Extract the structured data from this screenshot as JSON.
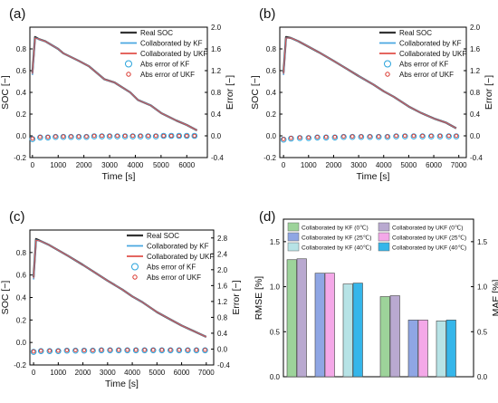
{
  "chart_data": [
    {
      "panel_label": "(a)",
      "type": "line",
      "xlabel": "Time [s]",
      "ylabel": "SOC [−]",
      "y2label": "Error [−]",
      "xlim": [
        -100,
        6800
      ],
      "ylim": [
        -0.2,
        1.0
      ],
      "y2lim": [
        -0.4,
        2.0
      ],
      "xticks": [
        0,
        1000,
        2000,
        3000,
        4000,
        5000,
        6000
      ],
      "yticks": [
        -0.2,
        0.0,
        0.2,
        0.4,
        0.6,
        0.8
      ],
      "y2ticks": [
        -0.4,
        0.0,
        0.4,
        0.8,
        1.2,
        1.6,
        2.0
      ],
      "legend_position": "top-right",
      "legend": [
        {
          "label": "Real SOC",
          "kind": "line",
          "color": "#333333"
        },
        {
          "label": "Collaborated by KF",
          "kind": "line",
          "color": "#4aa7e0"
        },
        {
          "label": "Collaborated by UKF",
          "kind": "line",
          "color": "#e0504a"
        },
        {
          "label": "Abs error of KF",
          "kind": "circle",
          "color": "#2aa3dc"
        },
        {
          "label": "Abs error of UKF",
          "kind": "circle",
          "color": "#d9342b"
        }
      ],
      "series": [
        {
          "name": "Real SOC",
          "axis": "left",
          "x": [
            0,
            100,
            250,
            500,
            1000,
            1200,
            1800,
            2200,
            2800,
            3200,
            3800,
            4100,
            4600,
            5000,
            5600,
            6000,
            6400
          ],
          "y": [
            0.58,
            0.91,
            0.89,
            0.87,
            0.8,
            0.76,
            0.69,
            0.64,
            0.52,
            0.49,
            0.4,
            0.33,
            0.28,
            0.21,
            0.14,
            0.1,
            0.05
          ]
        },
        {
          "name": "Collaborated by KF",
          "axis": "left",
          "x": [
            0,
            100,
            250,
            500,
            1000,
            1200,
            1800,
            2200,
            2800,
            3200,
            3800,
            4100,
            4600,
            5000,
            5600,
            6000,
            6400
          ],
          "y": [
            0.56,
            0.9,
            0.89,
            0.87,
            0.8,
            0.76,
            0.69,
            0.64,
            0.52,
            0.49,
            0.4,
            0.33,
            0.28,
            0.21,
            0.14,
            0.1,
            0.05
          ]
        },
        {
          "name": "Collaborated by UKF",
          "axis": "left",
          "x": [
            0,
            100,
            250,
            500,
            1000,
            1200,
            1800,
            2200,
            2800,
            3200,
            3800,
            4100,
            4600,
            5000,
            5600,
            6000,
            6400
          ],
          "y": [
            0.57,
            0.9,
            0.89,
            0.87,
            0.8,
            0.76,
            0.69,
            0.64,
            0.52,
            0.49,
            0.4,
            0.33,
            0.28,
            0.21,
            0.14,
            0.1,
            0.05
          ]
        },
        {
          "name": "Abs error of KF",
          "axis": "right",
          "x": [
            0,
            300,
            600,
            900,
            1200,
            1500,
            1800,
            2100,
            2400,
            2700,
            3000,
            3300,
            3600,
            3900,
            4200,
            4500,
            4800,
            5100,
            5400,
            5700,
            6000,
            6300
          ],
          "y": [
            -0.06,
            -0.03,
            -0.03,
            -0.02,
            -0.02,
            -0.02,
            -0.02,
            -0.02,
            -0.01,
            -0.01,
            -0.01,
            -0.01,
            -0.01,
            -0.01,
            -0.01,
            -0.01,
            -0.01,
            0.0,
            0.0,
            0.0,
            0.0,
            0.0
          ]
        },
        {
          "name": "Abs error of UKF",
          "axis": "right",
          "x": [
            0,
            300,
            600,
            900,
            1200,
            1500,
            1800,
            2100,
            2400,
            2700,
            3000,
            3300,
            3600,
            3900,
            4200,
            4500,
            4800,
            5100,
            5400,
            5700,
            6000,
            6300
          ],
          "y": [
            -0.05,
            -0.02,
            -0.02,
            -0.01,
            -0.01,
            -0.01,
            -0.01,
            -0.01,
            0.0,
            0.0,
            0.0,
            0.0,
            0.0,
            0.0,
            0.0,
            0.0,
            0.0,
            0.0,
            0.0,
            0.0,
            0.0,
            0.0
          ]
        }
      ]
    },
    {
      "panel_label": "(b)",
      "type": "line",
      "xlabel": "Time [s]",
      "ylabel": "SOC [−]",
      "y2label": "Error [−]",
      "xlim": [
        -150,
        7300
      ],
      "ylim": [
        -0.2,
        1.0
      ],
      "y2lim": [
        -0.4,
        2.0
      ],
      "xticks": [
        0,
        1000,
        2000,
        3000,
        4000,
        5000,
        6000,
        7000
      ],
      "yticks": [
        -0.2,
        0.0,
        0.2,
        0.4,
        0.6,
        0.8
      ],
      "y2ticks": [
        -0.4,
        0.0,
        0.4,
        0.8,
        1.2,
        1.6,
        2.0
      ],
      "legend_position": "top-right",
      "legend": [
        {
          "label": "Real SOC",
          "kind": "line",
          "color": "#333333"
        },
        {
          "label": "Collaborated by KF",
          "kind": "line",
          "color": "#4aa7e0"
        },
        {
          "label": "Collaborated by UKF",
          "kind": "line",
          "color": "#e0504a"
        },
        {
          "label": "Abs error of KF",
          "kind": "circle",
          "color": "#2aa3dc"
        },
        {
          "label": "Abs error of UKF",
          "kind": "circle",
          "color": "#d9342b"
        }
      ],
      "series": [
        {
          "name": "Real SOC",
          "axis": "left",
          "x": [
            0,
            100,
            300,
            600,
            1000,
            1400,
            2000,
            2500,
            3000,
            3600,
            4000,
            4400,
            5000,
            5500,
            6000,
            6500,
            6900
          ],
          "y": [
            0.58,
            0.91,
            0.9,
            0.87,
            0.82,
            0.77,
            0.69,
            0.62,
            0.55,
            0.47,
            0.41,
            0.36,
            0.27,
            0.21,
            0.16,
            0.12,
            0.07
          ]
        },
        {
          "name": "Collaborated by KF",
          "axis": "left",
          "x": [
            0,
            100,
            300,
            600,
            1000,
            1400,
            2000,
            2500,
            3000,
            3600,
            4000,
            4400,
            5000,
            5500,
            6000,
            6500,
            6900
          ],
          "y": [
            0.56,
            0.9,
            0.9,
            0.87,
            0.82,
            0.77,
            0.69,
            0.62,
            0.55,
            0.47,
            0.41,
            0.36,
            0.27,
            0.21,
            0.16,
            0.12,
            0.07
          ]
        },
        {
          "name": "Collaborated by UKF",
          "axis": "left",
          "x": [
            0,
            100,
            300,
            600,
            1000,
            1400,
            2000,
            2500,
            3000,
            3600,
            4000,
            4400,
            5000,
            5500,
            6000,
            6500,
            6900
          ],
          "y": [
            0.57,
            0.9,
            0.9,
            0.87,
            0.82,
            0.77,
            0.69,
            0.62,
            0.55,
            0.47,
            0.41,
            0.36,
            0.27,
            0.21,
            0.16,
            0.12,
            0.07
          ]
        },
        {
          "name": "Abs error of KF",
          "axis": "right",
          "x": [
            0,
            300,
            650,
            1000,
            1350,
            1700,
            2050,
            2400,
            2750,
            3100,
            3450,
            3800,
            4150,
            4500,
            4850,
            5200,
            5550,
            5900,
            6250,
            6600,
            6900
          ],
          "y": [
            -0.07,
            -0.05,
            -0.04,
            -0.04,
            -0.03,
            -0.03,
            -0.03,
            -0.02,
            -0.02,
            -0.02,
            -0.02,
            -0.02,
            -0.02,
            -0.01,
            -0.01,
            -0.01,
            -0.01,
            -0.01,
            -0.01,
            -0.01,
            -0.01
          ]
        },
        {
          "name": "Abs error of UKF",
          "axis": "right",
          "x": [
            0,
            300,
            650,
            1000,
            1350,
            1700,
            2050,
            2400,
            2750,
            3100,
            3450,
            3800,
            4150,
            4500,
            4850,
            5200,
            5550,
            5900,
            6250,
            6600,
            6900
          ],
          "y": [
            -0.06,
            -0.04,
            -0.03,
            -0.03,
            -0.02,
            -0.02,
            -0.02,
            -0.01,
            -0.01,
            -0.01,
            -0.01,
            -0.01,
            -0.01,
            0.0,
            0.0,
            0.0,
            0.0,
            0.0,
            0.0,
            0.0,
            0.0
          ]
        }
      ]
    },
    {
      "panel_label": "(c)",
      "type": "line",
      "xlabel": "Time [s]",
      "ylabel": "SOC [−]",
      "y2label": "Error [−]",
      "xlim": [
        -150,
        7300
      ],
      "ylim": [
        -0.2,
        1.0
      ],
      "y2lim": [
        -0.4,
        3.0
      ],
      "xticks": [
        0,
        1000,
        2000,
        3000,
        4000,
        5000,
        6000,
        7000
      ],
      "yticks": [
        -0.2,
        0.0,
        0.2,
        0.4,
        0.6,
        0.8
      ],
      "y2ticks": [
        -0.4,
        0.0,
        0.4,
        0.8,
        1.2,
        1.6,
        2.0,
        2.4,
        2.8
      ],
      "legend_position": "top-right",
      "legend": [
        {
          "label": "Real SOC",
          "kind": "line",
          "color": "#333333"
        },
        {
          "label": "Collaborated by KF",
          "kind": "line",
          "color": "#4aa7e0"
        },
        {
          "label": "Collaborated by UKF",
          "kind": "line",
          "color": "#e0504a"
        },
        {
          "label": "Abs error of KF",
          "kind": "circle",
          "color": "#2aa3dc"
        },
        {
          "label": "Abs error of UKF",
          "kind": "circle",
          "color": "#d9342b"
        }
      ],
      "series": [
        {
          "name": "Real SOC",
          "axis": "left",
          "x": [
            0,
            100,
            300,
            600,
            1000,
            1400,
            2000,
            2500,
            3000,
            3600,
            4000,
            4400,
            5000,
            5500,
            6000,
            6500,
            7000
          ],
          "y": [
            0.58,
            0.92,
            0.9,
            0.87,
            0.82,
            0.77,
            0.69,
            0.62,
            0.55,
            0.47,
            0.41,
            0.36,
            0.27,
            0.21,
            0.15,
            0.1,
            0.05
          ]
        },
        {
          "name": "Collaborated by KF",
          "axis": "left",
          "x": [
            0,
            100,
            300,
            600,
            1000,
            1400,
            2000,
            2500,
            3000,
            3600,
            4000,
            4400,
            5000,
            5500,
            6000,
            6500,
            7000
          ],
          "y": [
            0.56,
            0.91,
            0.9,
            0.87,
            0.82,
            0.77,
            0.69,
            0.62,
            0.55,
            0.47,
            0.41,
            0.36,
            0.27,
            0.21,
            0.15,
            0.1,
            0.05
          ]
        },
        {
          "name": "Collaborated by UKF",
          "axis": "left",
          "x": [
            0,
            100,
            300,
            600,
            1000,
            1400,
            2000,
            2500,
            3000,
            3600,
            4000,
            4400,
            5000,
            5500,
            6000,
            6500,
            7000
          ],
          "y": [
            0.57,
            0.91,
            0.9,
            0.87,
            0.82,
            0.77,
            0.69,
            0.62,
            0.55,
            0.47,
            0.41,
            0.36,
            0.27,
            0.21,
            0.15,
            0.1,
            0.05
          ]
        },
        {
          "name": "Abs error of KF",
          "axis": "right",
          "x": [
            0,
            300,
            650,
            1000,
            1350,
            1700,
            2050,
            2400,
            2750,
            3100,
            3450,
            3800,
            4150,
            4500,
            4850,
            5200,
            5550,
            5900,
            6250,
            6600,
            6950
          ],
          "y": [
            -0.07,
            -0.05,
            -0.05,
            -0.05,
            -0.04,
            -0.04,
            -0.04,
            -0.04,
            -0.03,
            -0.03,
            -0.03,
            -0.03,
            -0.03,
            -0.03,
            -0.03,
            -0.03,
            -0.03,
            -0.03,
            -0.03,
            -0.03,
            -0.03
          ]
        },
        {
          "name": "Abs error of UKF",
          "axis": "right",
          "x": [
            0,
            300,
            650,
            1000,
            1350,
            1700,
            2050,
            2400,
            2750,
            3100,
            3450,
            3800,
            4150,
            4500,
            4850,
            5200,
            5550,
            5900,
            6250,
            6600,
            6950
          ],
          "y": [
            -0.06,
            -0.04,
            -0.04,
            -0.04,
            -0.03,
            -0.03,
            -0.03,
            -0.03,
            -0.02,
            -0.02,
            -0.02,
            -0.02,
            -0.02,
            -0.02,
            -0.02,
            -0.02,
            -0.02,
            -0.02,
            -0.02,
            -0.02,
            -0.02
          ]
        }
      ]
    },
    {
      "panel_label": "(d)",
      "type": "bar",
      "ylabel": "RMSE [%]",
      "y2label": "MAE [%]",
      "ylim": [
        0,
        1.75
      ],
      "y2lim": [
        0,
        1.75
      ],
      "yticks": [
        0.0,
        0.5,
        1.0,
        1.5
      ],
      "y2ticks": [
        0.0,
        0.5,
        1.0,
        1.5
      ],
      "legend_position": "top",
      "legend": [
        {
          "label": "Collaborated by KF (0℃)",
          "color": "#9dd39a"
        },
        {
          "label": "Collaborated by UKF (0℃)",
          "color": "#b9a9d0"
        },
        {
          "label": "Collaborated by KF (25℃)",
          "color": "#8fa6e4"
        },
        {
          "label": "Collaborated by UKF (25℃)",
          "color": "#f4a8e8"
        },
        {
          "label": "Collaborated by KF (40℃)",
          "color": "#b7e3e6"
        },
        {
          "label": "Collaborated by UKF (40℃)",
          "color": "#35b6ea"
        }
      ],
      "groups": [
        {
          "metric": "RMSE",
          "bars": [
            {
              "name": "Collaborated by KF (0℃)",
              "value": 1.3
            },
            {
              "name": "Collaborated by UKF (0℃)",
              "value": 1.31
            },
            {
              "name": "Collaborated by KF (25℃)",
              "value": 1.15
            },
            {
              "name": "Collaborated by UKF (25℃)",
              "value": 1.15
            },
            {
              "name": "Collaborated by KF (40℃)",
              "value": 1.03
            },
            {
              "name": "Collaborated by UKF (40℃)",
              "value": 1.04
            }
          ]
        },
        {
          "metric": "MAE",
          "bars": [
            {
              "name": "Collaborated by KF (0℃)",
              "value": 0.89
            },
            {
              "name": "Collaborated by UKF (0℃)",
              "value": 0.9
            },
            {
              "name": "Collaborated by KF (25℃)",
              "value": 0.63
            },
            {
              "name": "Collaborated by UKF (25℃)",
              "value": 0.63
            },
            {
              "name": "Collaborated by KF (40℃)",
              "value": 0.62
            },
            {
              "name": "Collaborated by UKF (40℃)",
              "value": 0.63
            }
          ]
        }
      ]
    }
  ]
}
